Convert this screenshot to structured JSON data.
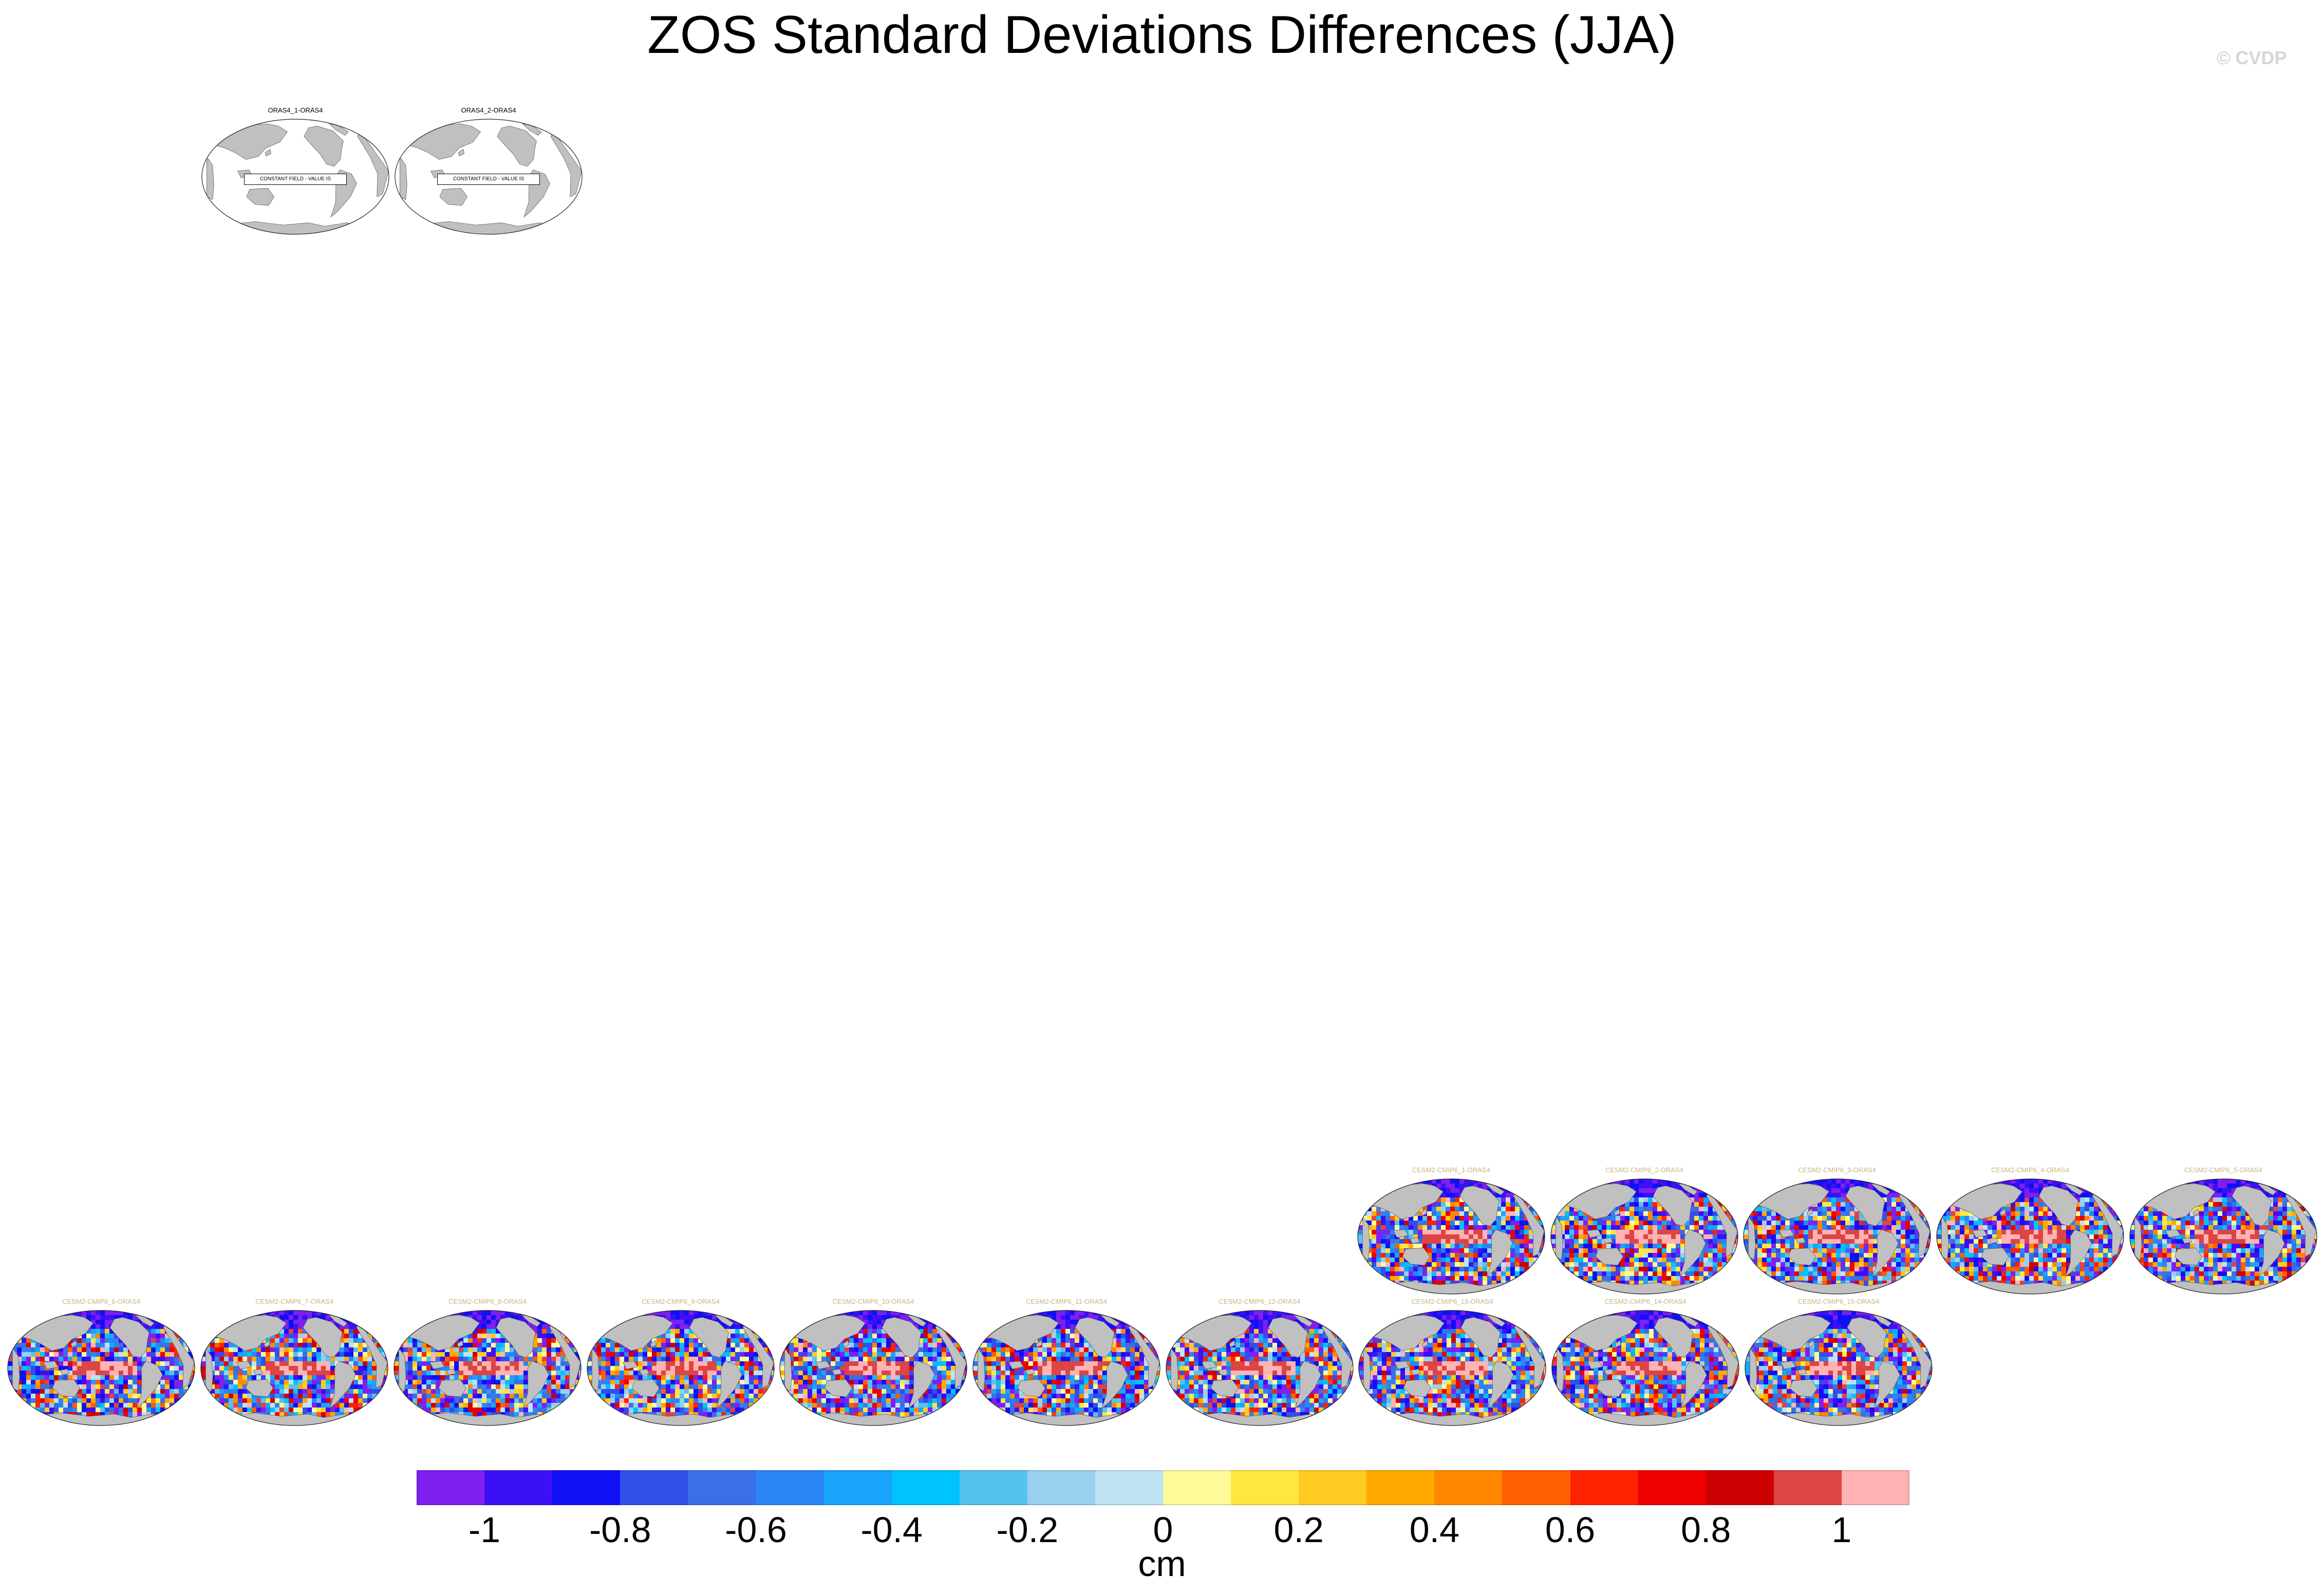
{
  "page": {
    "title": "ZOS Standard Deviations Differences (JJA)",
    "credit": "© CVDP"
  },
  "panels": [
    {
      "id": "p1",
      "title": "ORAS4_1-ORAS4",
      "kind": "constant",
      "note": "CONSTANT FIELD - VALUE IS"
    },
    {
      "id": "p2",
      "title": "ORAS4_2-ORAS4",
      "kind": "constant",
      "note": "CONSTANT FIELD - VALUE IS"
    },
    {
      "id": "p3",
      "title": "CESM2-CMIP6_1-ORAS4",
      "kind": "model",
      "seed": 11
    },
    {
      "id": "p4",
      "title": "CESM2-CMIP6_2-ORAS4",
      "kind": "model",
      "seed": 23
    },
    {
      "id": "p5",
      "title": "CESM2-CMIP6_3-ORAS4",
      "kind": "model",
      "seed": 37
    },
    {
      "id": "p6",
      "title": "CESM2-CMIP6_4-ORAS4",
      "kind": "model",
      "seed": 41
    },
    {
      "id": "p7",
      "title": "CESM2-CMIP6_5-ORAS4",
      "kind": "model",
      "seed": 53
    },
    {
      "id": "p8",
      "title": "CESM2-CMIP6_6-ORAS4",
      "kind": "model",
      "seed": 67
    },
    {
      "id": "p9",
      "title": "CESM2-CMIP6_7-ORAS4",
      "kind": "model",
      "seed": 71
    },
    {
      "id": "p10",
      "title": "CESM2-CMIP6_8-ORAS4",
      "kind": "model",
      "seed": 83
    },
    {
      "id": "p11",
      "title": "CESM2-CMIP6_9-ORAS4",
      "kind": "model",
      "seed": 97
    },
    {
      "id": "p12",
      "title": "CESM2-CMIP6_10-ORAS4",
      "kind": "model",
      "seed": 101
    },
    {
      "id": "p13",
      "title": "CESM2-CMIP6_11-ORAS4",
      "kind": "model",
      "seed": 113
    },
    {
      "id": "p14",
      "title": "CESM2-CMIP6_12-ORAS4",
      "kind": "model",
      "seed": 127
    },
    {
      "id": "p15",
      "title": "CESM2-CMIP6_13-ORAS4",
      "kind": "model",
      "seed": 131
    },
    {
      "id": "p16",
      "title": "CESM2-CMIP6_14-ORAS4",
      "kind": "model",
      "seed": 149
    },
    {
      "id": "p17",
      "title": "CESM2-CMIP6_15-ORAS4",
      "kind": "model",
      "seed": 157
    }
  ],
  "chart_data": {
    "type": "heatmap",
    "title": "ZOS Standard Deviations Differences (JJA)",
    "units": "cm",
    "projection": "Robinson (global, Pacific-centered)",
    "colorbar": {
      "boundaries": [
        -1.1,
        -1.0,
        -0.9,
        -0.8,
        -0.7,
        -0.6,
        -0.5,
        -0.4,
        -0.3,
        -0.2,
        -0.1,
        0,
        0.1,
        0.2,
        0.3,
        0.4,
        0.5,
        0.6,
        0.7,
        0.8,
        0.9,
        1.0,
        1.1
      ],
      "tick_labels": [
        "-1",
        "-0.8",
        "-0.6",
        "-0.4",
        "-0.2",
        "0",
        "0.2",
        "0.4",
        "0.6",
        "0.8",
        "1"
      ],
      "tick_values": [
        -1,
        -0.8,
        -0.6,
        -0.4,
        -0.2,
        0,
        0.2,
        0.4,
        0.6,
        0.8,
        1
      ],
      "colors": [
        "#7f1ff0",
        "#3c10f5",
        "#1010f5",
        "#3050e8",
        "#3a6fe6",
        "#2a86f5",
        "#1aa4fb",
        "#00c2fc",
        "#55c3f0",
        "#98d0ee",
        "#bde3f5",
        "#fffa9a",
        "#ffe641",
        "#ffca22",
        "#ffaa00",
        "#ff8800",
        "#ff5f00",
        "#ff2200",
        "#ee0000",
        "#cc0000",
        "#dd4444",
        "#ffb3b3"
      ]
    },
    "land_color": "#c0c0c0",
    "missing_color": "#ffffff"
  }
}
